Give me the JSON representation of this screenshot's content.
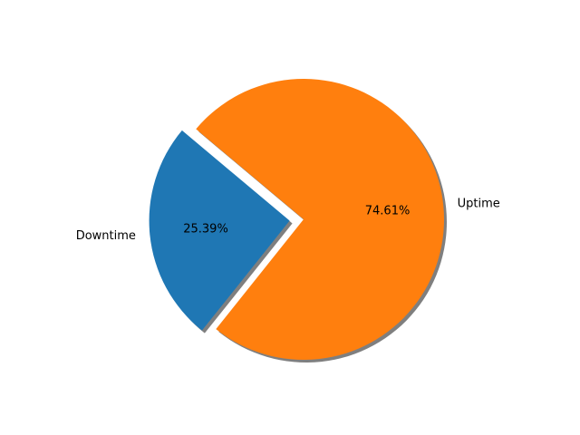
{
  "chart_data": {
    "type": "pie",
    "slices": [
      {
        "label": "Downtime",
        "value": 25.39,
        "pct_label": "25.39%",
        "color": "#1f77b4",
        "explode": 0.1
      },
      {
        "label": "Uptime",
        "value": 74.61,
        "pct_label": "74.61%",
        "color": "#ff7f0e",
        "explode": 0
      }
    ],
    "start_angle_deg": 140,
    "direction": "counterclockwise",
    "shadow": true,
    "shadow_color": "#7f7f7f",
    "title": "",
    "legend": "none"
  }
}
